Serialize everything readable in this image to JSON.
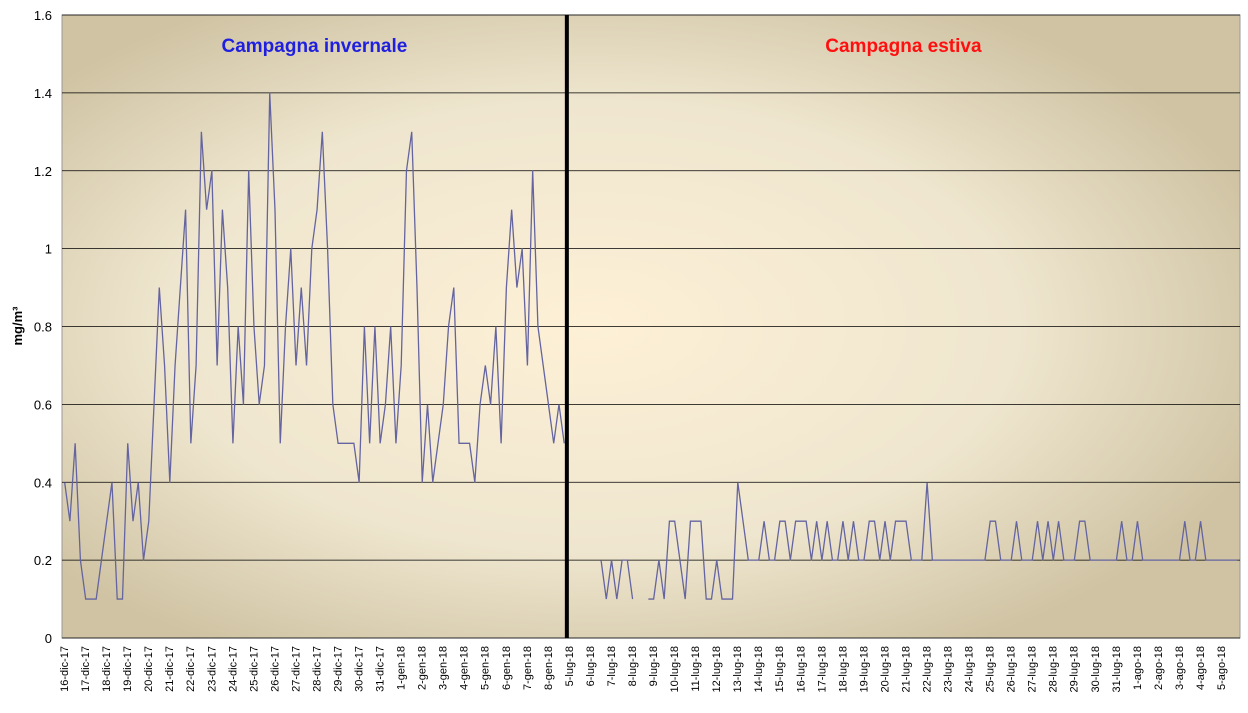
{
  "chart_data": [
    {
      "type": "line",
      "title": "Campagna invernale",
      "title_color": "#1f1fe0",
      "y_label": "mg/m³",
      "ylim": [
        0,
        1.6
      ],
      "yticks": [
        0,
        0.2,
        0.4,
        0.6,
        0.8,
        1,
        1.2,
        1.4,
        1.6
      ],
      "grid": true,
      "categories": [
        "16-dic-17",
        null,
        null,
        null,
        "17-dic-17",
        null,
        null,
        null,
        "18-dic-17",
        null,
        null,
        null,
        "19-dic-17",
        null,
        null,
        null,
        "20-dic-17",
        null,
        null,
        null,
        "21-dic-17",
        null,
        null,
        null,
        "22-dic-17",
        null,
        null,
        null,
        "23-dic-17",
        null,
        null,
        null,
        "24-dic-17",
        null,
        null,
        null,
        "25-dic-17",
        null,
        null,
        null,
        "26-dic-17",
        null,
        null,
        null,
        "27-dic-17",
        null,
        null,
        null,
        "28-dic-17",
        null,
        null,
        null,
        "29-dic-17",
        null,
        null,
        null,
        "30-dic-17",
        null,
        null,
        null,
        "31-dic-17",
        null,
        null,
        null,
        "1-gen-18",
        null,
        null,
        null,
        "2-gen-18",
        null,
        null,
        null,
        "3-gen-18",
        null,
        null,
        null,
        "4-gen-18",
        null,
        null,
        null,
        "5-gen-18",
        null,
        null,
        null,
        "6-gen-18",
        null,
        null,
        null,
        "7-gen-18",
        null,
        null,
        null,
        "8-gen-18",
        null,
        null,
        null
      ],
      "series": [
        {
          "color": "#6464a0",
          "values": [
            0.4,
            0.3,
            0.5,
            0.2,
            0.1,
            0.1,
            0.1,
            0.2,
            0.3,
            0.4,
            0.1,
            0.1,
            0.5,
            0.3,
            0.4,
            0.2,
            0.3,
            0.6,
            0.9,
            0.7,
            0.4,
            0.7,
            0.9,
            1.1,
            0.5,
            0.7,
            1.3,
            1.1,
            1.2,
            0.7,
            1.1,
            0.9,
            0.5,
            0.8,
            0.6,
            1.2,
            0.8,
            0.6,
            0.7,
            1.4,
            1.1,
            0.5,
            0.8,
            1.0,
            0.7,
            0.9,
            0.7,
            1.0,
            1.1,
            1.3,
            1.0,
            0.6,
            0.5,
            0.5,
            0.5,
            0.5,
            0.4,
            0.8,
            0.5,
            0.8,
            0.5,
            0.6,
            0.8,
            0.5,
            0.7,
            1.2,
            1.3,
            0.9,
            0.4,
            0.6,
            0.4,
            0.5,
            0.6,
            0.8,
            0.9,
            0.5,
            0.5,
            0.5,
            0.4,
            0.6,
            0.7,
            0.6,
            0.8,
            0.5,
            0.9,
            1.1,
            0.9,
            1.0,
            0.7,
            1.2,
            0.8,
            0.7,
            0.6,
            0.5,
            0.6,
            0.5
          ]
        }
      ]
    },
    {
      "type": "line",
      "title": "Campagna estiva",
      "title_color": "#ff1010",
      "ylim": [
        0,
        1.6
      ],
      "yticks": [
        0,
        0.2,
        0.4,
        0.6,
        0.8,
        1,
        1.2,
        1.4,
        1.6
      ],
      "grid": true,
      "categories": [
        "5-lug-18",
        null,
        null,
        null,
        "6-lug-18",
        null,
        null,
        null,
        "7-lug-18",
        null,
        null,
        null,
        "8-lug-18",
        null,
        null,
        null,
        "9-lug-18",
        null,
        null,
        null,
        "10-lug-18",
        null,
        null,
        null,
        "11-lug-18",
        null,
        null,
        null,
        "12-lug-18",
        null,
        null,
        null,
        "13-lug-18",
        null,
        null,
        null,
        "14-lug-18",
        null,
        null,
        null,
        "15-lug-18",
        null,
        null,
        null,
        "16-lug-18",
        null,
        null,
        null,
        "17-lug-18",
        null,
        null,
        null,
        "18-lug-18",
        null,
        null,
        null,
        "19-lug-18",
        null,
        null,
        null,
        "20-lug-18",
        null,
        null,
        null,
        "21-lug-18",
        null,
        null,
        null,
        "22-lug-18",
        null,
        null,
        null,
        "23-lug-18",
        null,
        null,
        null,
        "24-lug-18",
        null,
        null,
        null,
        "25-lug-18",
        null,
        null,
        null,
        "26-lug-18",
        null,
        null,
        null,
        "27-lug-18",
        null,
        null,
        null,
        "28-lug-18",
        null,
        null,
        null,
        "29-lug-18",
        null,
        null,
        null,
        "30-lug-18",
        null,
        null,
        null,
        "31-lug-18",
        null,
        null,
        null,
        "1-ago-18",
        null,
        null,
        null,
        "2-ago-18",
        null,
        null,
        null,
        "3-ago-18",
        null,
        null,
        null,
        "4-ago-18",
        null,
        null,
        null,
        "5-ago-18",
        null,
        null,
        null
      ],
      "series": [
        {
          "color": "#6464a0",
          "values": [
            null,
            null,
            null,
            null,
            null,
            null,
            0.2,
            0.1,
            0.2,
            0.1,
            0.2,
            0.2,
            0.1,
            null,
            null,
            0.1,
            0.1,
            0.2,
            0.1,
            0.3,
            0.3,
            0.2,
            0.1,
            0.3,
            0.3,
            0.3,
            0.1,
            0.1,
            0.2,
            0.1,
            0.1,
            0.1,
            0.4,
            0.3,
            0.2,
            0.2,
            0.2,
            0.3,
            0.2,
            0.2,
            0.3,
            0.3,
            0.2,
            0.3,
            0.3,
            0.3,
            0.2,
            0.3,
            0.2,
            0.3,
            0.2,
            0.2,
            0.3,
            0.2,
            0.3,
            0.2,
            0.2,
            0.3,
            0.3,
            0.2,
            0.3,
            0.2,
            0.3,
            0.3,
            0.3,
            0.2,
            0.2,
            0.2,
            0.4,
            0.2,
            0.2,
            0.2,
            0.2,
            0.2,
            0.2,
            0.2,
            0.2,
            0.2,
            0.2,
            0.2,
            0.3,
            0.3,
            0.2,
            0.2,
            0.2,
            0.3,
            0.2,
            0.2,
            0.2,
            0.3,
            0.2,
            0.3,
            0.2,
            0.3,
            0.2,
            0.2,
            0.2,
            0.3,
            0.3,
            0.2,
            0.2,
            0.2,
            0.2,
            0.2,
            0.2,
            0.3,
            0.2,
            0.2,
            0.3,
            0.2,
            0.2,
            0.2,
            0.2,
            0.2,
            0.2,
            0.2,
            0.2,
            0.3,
            0.2,
            0.2,
            0.3,
            0.2,
            0.2,
            0.2,
            0.2,
            0.2,
            0.2,
            0.2
          ]
        }
      ]
    }
  ]
}
